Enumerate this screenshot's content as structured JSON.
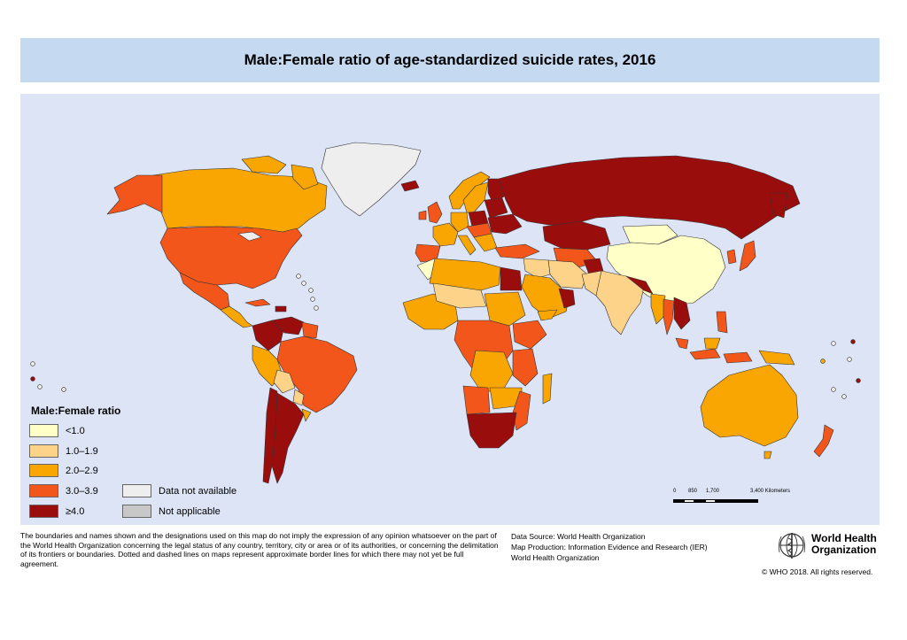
{
  "title": "Male:Female ratio of age-standardized suicide rates, 2016",
  "legend": {
    "title": "Male:Female ratio",
    "items": [
      {
        "label": "<1.0",
        "color": "#ffffc8"
      },
      {
        "label": "1.0–1.9",
        "color": "#fdd38a"
      },
      {
        "label": "2.0–2.9",
        "color": "#f9a602"
      },
      {
        "label": "3.0–3.9",
        "color": "#f3561a"
      },
      {
        "label": "≥4.0",
        "color": "#9a0d0d"
      },
      {
        "label": "Data not available",
        "color": "#eeeeee"
      },
      {
        "label": "Not applicable",
        "color": "#c8c8c8"
      }
    ]
  },
  "scale_bar": {
    "labels": [
      "0",
      "850",
      "1,700",
      "3,400 Kilometers"
    ]
  },
  "disclaimer": "The boundaries and names shown and the designations used on this map do not imply the expression of any opinion whatsoever on the part of the World Health Organization concerning the legal status of any country, territory, city or area or of its authorities, or concerning the delimitation of its frontiers or boundaries. Dotted and dashed lines on maps represent approximate border lines for which there may not yet be full agreement.",
  "source": {
    "line1": "Data Source: World Health Organization",
    "line2": "Map Production: Information Evidence and Research (IER)",
    "line3": "World Health Organization"
  },
  "who": {
    "line1": "World Health",
    "line2": "Organization"
  },
  "copyright": "© WHO 2018. All rights reserved.",
  "colors": {
    "ocean": "#dde4f6",
    "title_bar": "#c5d9f1",
    "border": "#333333"
  }
}
